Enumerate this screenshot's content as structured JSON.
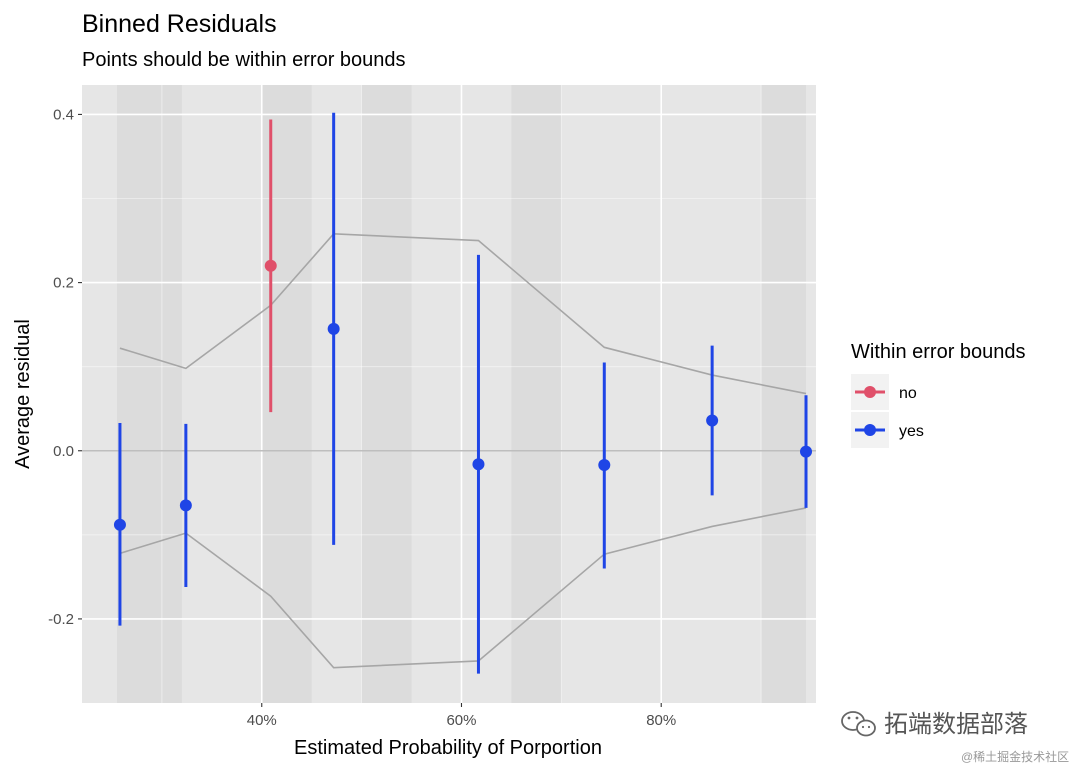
{
  "chart_data": {
    "type": "scatter",
    "title": "Binned Residuals",
    "subtitle": "Points should be within error bounds",
    "xlabel": "Estimated Probability of Porportion",
    "ylabel": "Average residual",
    "xlim": [
      0.22,
      0.955
    ],
    "ylim": [
      -0.3,
      0.435
    ],
    "x_ticks": [
      {
        "value": 0.4,
        "label": "40%"
      },
      {
        "value": 0.6,
        "label": "60%"
      },
      {
        "value": 0.8,
        "label": "80%"
      }
    ],
    "y_ticks": [
      {
        "value": 0.4,
        "label": "0.4"
      },
      {
        "value": 0.2,
        "label": "0.2"
      },
      {
        "value": 0.0,
        "label": "0.0"
      },
      {
        "value": -0.2,
        "label": "-0.2"
      }
    ],
    "x_minor_ticks": [
      0.3,
      0.5,
      0.7,
      0.9
    ],
    "y_minor_ticks": [
      0.3,
      0.1,
      -0.1
    ],
    "shaded_bins": [
      [
        0.255,
        0.32
      ],
      [
        0.4,
        0.45
      ],
      [
        0.5,
        0.55
      ],
      [
        0.65,
        0.7
      ],
      [
        0.9,
        0.945
      ]
    ],
    "reference_line": 0.0,
    "points": [
      {
        "x": 0.258,
        "y": -0.088,
        "ymin": -0.208,
        "ymax": 0.033,
        "within": "yes"
      },
      {
        "x": 0.324,
        "y": -0.065,
        "ymin": -0.162,
        "ymax": 0.032,
        "within": "yes"
      },
      {
        "x": 0.409,
        "y": 0.22,
        "ymin": 0.046,
        "ymax": 0.394,
        "within": "no"
      },
      {
        "x": 0.472,
        "y": 0.145,
        "ymin": -0.112,
        "ymax": 0.402,
        "within": "yes"
      },
      {
        "x": 0.617,
        "y": -0.016,
        "ymin": -0.265,
        "ymax": 0.233,
        "within": "yes"
      },
      {
        "x": 0.743,
        "y": -0.017,
        "ymin": -0.14,
        "ymax": 0.105,
        "within": "yes"
      },
      {
        "x": 0.851,
        "y": 0.036,
        "ymin": -0.053,
        "ymax": 0.125,
        "within": "yes"
      },
      {
        "x": 0.945,
        "y": -0.001,
        "ymin": -0.068,
        "ymax": 0.066,
        "within": "yes"
      }
    ],
    "bounds": {
      "x": [
        0.258,
        0.324,
        0.409,
        0.472,
        0.617,
        0.743,
        0.851,
        0.945
      ],
      "upper": [
        0.122,
        0.098,
        0.173,
        0.258,
        0.25,
        0.123,
        0.09,
        0.068
      ],
      "lower": [
        -0.122,
        -0.098,
        -0.173,
        -0.258,
        -0.25,
        -0.123,
        -0.09,
        -0.068
      ]
    },
    "legend": {
      "title": "Within error bounds",
      "position": "right",
      "entries": [
        {
          "key": "no",
          "label": "no",
          "color": "#e0506a"
        },
        {
          "key": "yes",
          "label": "yes",
          "color": "#1f45e6"
        }
      ]
    }
  },
  "colors": {
    "panel_bg": "#e6e6e6",
    "shade_bg": "#dcdcdc",
    "grid_major": "#ffffff",
    "bounds_line": "#a6a6a6",
    "zero_line": "#bebebe"
  },
  "watermark": {
    "main": "拓端数据部落",
    "sub": "@稀土掘金技术社区",
    "icon": "wechat-icon"
  }
}
